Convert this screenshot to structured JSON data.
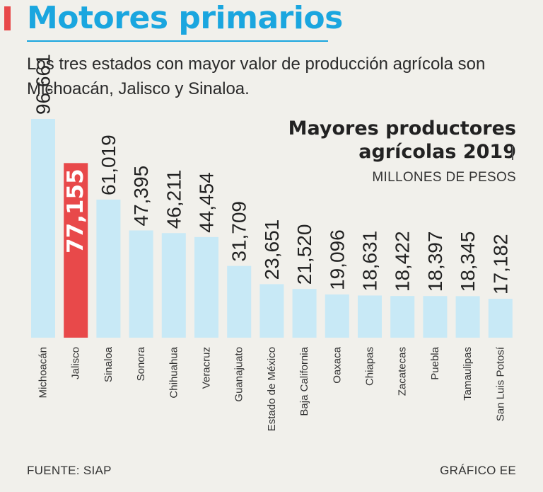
{
  "header": {
    "title": "Motores primarios",
    "subtitle": "Los tres estados con mayor valor de producción agrícola son Michoacán, Jalisco y Sinaloa."
  },
  "chart_data": {
    "type": "bar",
    "title_line1": "Mayores productores",
    "title_line2": "agrícolas 2019",
    "units_label": "MILLONES DE PESOS",
    "categories": [
      "Michoacán",
      "Jalisco",
      "Sinaloa",
      "Sonora",
      "Chihuahua",
      "Veracruz",
      "Guanajuato",
      "Estado de México",
      "Baja California",
      "Oaxaca",
      "Chiapas",
      "Zacatecas",
      "Puebla",
      "Tamaulipas",
      "San Luis Potosí"
    ],
    "values": [
      96661,
      77155,
      61019,
      47395,
      46211,
      44454,
      31709,
      23651,
      21520,
      19096,
      18631,
      18422,
      18397,
      18345,
      17182
    ],
    "value_labels": [
      "96,661",
      "77,155",
      "61,019",
      "47,395",
      "46,211",
      "44,454",
      "31,709",
      "23,651",
      "21,520",
      "19,096",
      "18,631",
      "18,422",
      "18,397",
      "18,345",
      "17,182"
    ],
    "highlight_index": 1,
    "ylim": [
      0,
      96661
    ],
    "colors": {
      "bar": "#c8e9f6",
      "highlight": "#e8494a",
      "label": "#222222",
      "highlight_label": "#ffffff"
    }
  },
  "footer": {
    "source": "FUENTE: SIAP",
    "credit": "GRÁFICO EE"
  }
}
